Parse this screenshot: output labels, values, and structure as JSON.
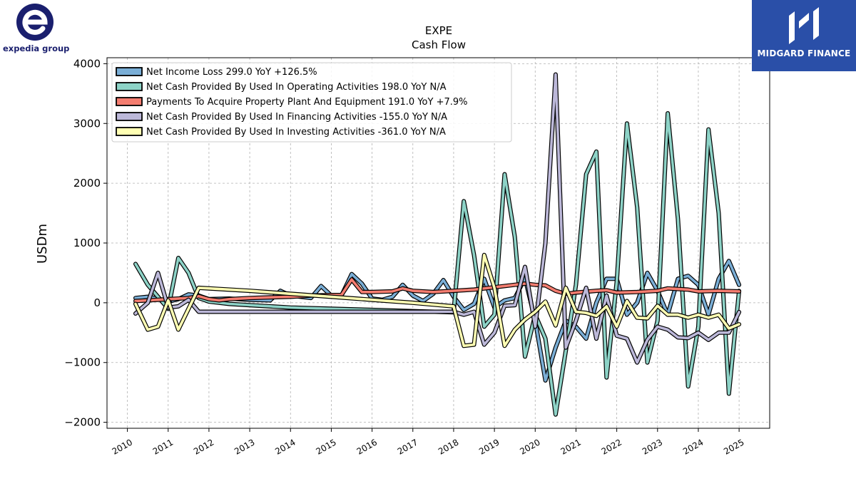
{
  "logos": {
    "left_text": "expedia group",
    "right_text": "MIDGARD FINANCE",
    "left_color": "#1a1f6e",
    "right_bg": "#2a4fa8"
  },
  "chart_data": {
    "type": "line",
    "title": "EXPE",
    "subtitle": "Cash Flow",
    "ylabel": "USDm",
    "xlabel": "",
    "ylim": [
      -2100,
      4100
    ],
    "xlim": [
      2009.5,
      2025.75
    ],
    "yticks": [
      -2000,
      -1000,
      0,
      1000,
      2000,
      3000,
      4000
    ],
    "ytick_labels": [
      "−2000",
      "−1000",
      "0",
      "1000",
      "2000",
      "3000",
      "4000"
    ],
    "xticks": [
      "2010",
      "2011",
      "2012",
      "2013",
      "2014",
      "2015",
      "2016",
      "2017",
      "2018",
      "2019",
      "2020",
      "2021",
      "2022",
      "2023",
      "2024",
      "2025"
    ],
    "grid": true,
    "legend_position": "top-left",
    "series": [
      {
        "name": "Net Income Loss  299.0 YoY +126.5%",
        "color": "#7aaed6",
        "points": [
          [
            2010.2,
            80
          ],
          [
            2010.5,
            100
          ],
          [
            2010.75,
            70
          ],
          [
            2011.0,
            20
          ],
          [
            2011.25,
            60
          ],
          [
            2011.5,
            140
          ],
          [
            2011.75,
            120
          ],
          [
            2012.0,
            60
          ],
          [
            2012.5,
            70
          ],
          [
            2013.0,
            50
          ],
          [
            2013.5,
            40
          ],
          [
            2013.75,
            200
          ],
          [
            2014.0,
            120
          ],
          [
            2014.5,
            80
          ],
          [
            2014.75,
            280
          ],
          [
            2015.0,
            120
          ],
          [
            2015.25,
            120
          ],
          [
            2015.5,
            480
          ],
          [
            2015.75,
            320
          ],
          [
            2016.0,
            70
          ],
          [
            2016.25,
            50
          ],
          [
            2016.5,
            100
          ],
          [
            2016.75,
            300
          ],
          [
            2017.0,
            120
          ],
          [
            2017.25,
            30
          ],
          [
            2017.5,
            150
          ],
          [
            2017.75,
            380
          ],
          [
            2018.0,
            100
          ],
          [
            2018.25,
            -120
          ],
          [
            2018.5,
            -20
          ],
          [
            2018.75,
            400
          ],
          [
            2019.0,
            -80
          ],
          [
            2019.25,
            40
          ],
          [
            2019.5,
            80
          ],
          [
            2019.75,
            410
          ],
          [
            2020.0,
            -300
          ],
          [
            2020.25,
            -1300
          ],
          [
            2020.5,
            -750
          ],
          [
            2020.75,
            -300
          ],
          [
            2021.0,
            -400
          ],
          [
            2021.25,
            -600
          ],
          [
            2021.5,
            0
          ],
          [
            2021.75,
            400
          ],
          [
            2022.0,
            400
          ],
          [
            2022.25,
            -200
          ],
          [
            2022.5,
            0
          ],
          [
            2022.75,
            500
          ],
          [
            2023.0,
            200
          ],
          [
            2023.25,
            -200
          ],
          [
            2023.5,
            400
          ],
          [
            2023.75,
            450
          ],
          [
            2024.0,
            300
          ],
          [
            2024.25,
            -200
          ],
          [
            2024.5,
            400
          ],
          [
            2024.75,
            700
          ],
          [
            2025.0,
            299
          ]
        ]
      },
      {
        "name": "Net Cash Provided By Used In Operating Activities  198.0 YoY N/A",
        "color": "#8dd3c7",
        "points": [
          [
            2010.2,
            650
          ],
          [
            2010.5,
            300
          ],
          [
            2010.75,
            100
          ],
          [
            2011.0,
            -100
          ],
          [
            2011.25,
            750
          ],
          [
            2011.5,
            500
          ],
          [
            2011.75,
            80
          ],
          [
            2012.0,
            20
          ],
          [
            2012.5,
            -20
          ],
          [
            2013.0,
            -40
          ],
          [
            2014.0,
            -80
          ],
          [
            2015.0,
            -100
          ],
          [
            2016.0,
            -120
          ],
          [
            2017.0,
            -140
          ],
          [
            2018.0,
            -160
          ],
          [
            2018.25,
            1700
          ],
          [
            2018.5,
            800
          ],
          [
            2018.75,
            -400
          ],
          [
            2019.0,
            -200
          ],
          [
            2019.25,
            2150
          ],
          [
            2019.5,
            1100
          ],
          [
            2019.75,
            -900
          ],
          [
            2020.0,
            -200
          ],
          [
            2020.25,
            -600
          ],
          [
            2020.5,
            -1870
          ],
          [
            2020.75,
            -800
          ],
          [
            2021.0,
            300
          ],
          [
            2021.25,
            2150
          ],
          [
            2021.5,
            2530
          ],
          [
            2021.75,
            -1250
          ],
          [
            2022.0,
            350
          ],
          [
            2022.25,
            3000
          ],
          [
            2022.5,
            1600
          ],
          [
            2022.75,
            -1000
          ],
          [
            2023.0,
            -300
          ],
          [
            2023.25,
            3170
          ],
          [
            2023.5,
            1400
          ],
          [
            2023.75,
            -1400
          ],
          [
            2024.0,
            -400
          ],
          [
            2024.25,
            2900
          ],
          [
            2024.5,
            1500
          ],
          [
            2024.75,
            -1520
          ],
          [
            2025.0,
            198
          ]
        ]
      },
      {
        "name": "Payments To Acquire Property Plant And Equipment  191.0 YoY +7.9%",
        "color": "#f47d70",
        "points": [
          [
            2010.2,
            30
          ],
          [
            2010.5,
            40
          ],
          [
            2010.75,
            50
          ],
          [
            2011.0,
            60
          ],
          [
            2011.5,
            80
          ],
          [
            2011.75,
            110
          ],
          [
            2012.0,
            60
          ],
          [
            2012.25,
            40
          ],
          [
            2012.5,
            60
          ],
          [
            2013.0,
            80
          ],
          [
            2013.5,
            90
          ],
          [
            2014.0,
            100
          ],
          [
            2014.5,
            120
          ],
          [
            2015.0,
            130
          ],
          [
            2015.25,
            130
          ],
          [
            2015.5,
            390
          ],
          [
            2015.75,
            180
          ],
          [
            2016.0,
            180
          ],
          [
            2016.5,
            190
          ],
          [
            2016.75,
            240
          ],
          [
            2017.0,
            200
          ],
          [
            2017.5,
            180
          ],
          [
            2018.0,
            200
          ],
          [
            2018.5,
            220
          ],
          [
            2019.0,
            260
          ],
          [
            2019.5,
            300
          ],
          [
            2019.75,
            320
          ],
          [
            2020.0,
            300
          ],
          [
            2020.25,
            290
          ],
          [
            2020.5,
            200
          ],
          [
            2020.75,
            150
          ],
          [
            2021.0,
            170
          ],
          [
            2021.5,
            200
          ],
          [
            2021.75,
            210
          ],
          [
            2022.0,
            170
          ],
          [
            2022.5,
            180
          ],
          [
            2023.0,
            200
          ],
          [
            2023.25,
            240
          ],
          [
            2023.75,
            220
          ],
          [
            2024.0,
            190
          ],
          [
            2024.5,
            200
          ],
          [
            2025.0,
            191
          ]
        ]
      },
      {
        "name": "Net Cash Provided By Used In Financing Activities  -155.0 YoY N/A",
        "color": "#bcb8d9",
        "points": [
          [
            2010.2,
            -180
          ],
          [
            2010.5,
            0
          ],
          [
            2010.75,
            500
          ],
          [
            2011.0,
            -80
          ],
          [
            2011.25,
            -60
          ],
          [
            2011.5,
            50
          ],
          [
            2011.75,
            -150
          ],
          [
            2012.0,
            -150
          ],
          [
            2013.0,
            -150
          ],
          [
            2014.0,
            -150
          ],
          [
            2015.0,
            -150
          ],
          [
            2016.0,
            -150
          ],
          [
            2017.0,
            -150
          ],
          [
            2018.0,
            -150
          ],
          [
            2018.25,
            -200
          ],
          [
            2018.5,
            -150
          ],
          [
            2018.75,
            -700
          ],
          [
            2019.0,
            -500
          ],
          [
            2019.25,
            -50
          ],
          [
            2019.5,
            -40
          ],
          [
            2019.75,
            600
          ],
          [
            2020.0,
            -400
          ],
          [
            2020.25,
            1000
          ],
          [
            2020.5,
            3820
          ],
          [
            2020.75,
            -750
          ],
          [
            2021.0,
            -300
          ],
          [
            2021.25,
            250
          ],
          [
            2021.5,
            -600
          ],
          [
            2021.75,
            120
          ],
          [
            2022.0,
            -550
          ],
          [
            2022.25,
            -600
          ],
          [
            2022.5,
            -1000
          ],
          [
            2022.75,
            -620
          ],
          [
            2023.0,
            -400
          ],
          [
            2023.25,
            -450
          ],
          [
            2023.5,
            -580
          ],
          [
            2023.75,
            -590
          ],
          [
            2024.0,
            -500
          ],
          [
            2024.25,
            -620
          ],
          [
            2024.5,
            -500
          ],
          [
            2024.75,
            -500
          ],
          [
            2025.0,
            -155
          ]
        ]
      },
      {
        "name": "Net Cash Provided By Used In Investing Activities  -361.0 YoY N/A",
        "color": "#ffffb3",
        "points": [
          [
            2010.2,
            -20
          ],
          [
            2010.5,
            -450
          ],
          [
            2010.75,
            -400
          ],
          [
            2011.0,
            40
          ],
          [
            2011.25,
            -450
          ],
          [
            2011.5,
            -100
          ],
          [
            2011.75,
            250
          ],
          [
            2012.0,
            240
          ],
          [
            2013.0,
            200
          ],
          [
            2014.0,
            150
          ],
          [
            2015.0,
            100
          ],
          [
            2016.0,
            50
          ],
          [
            2017.0,
            0
          ],
          [
            2018.0,
            -60
          ],
          [
            2018.25,
            -720
          ],
          [
            2018.5,
            -700
          ],
          [
            2018.75,
            800
          ],
          [
            2019.0,
            250
          ],
          [
            2019.25,
            -720
          ],
          [
            2019.5,
            -450
          ],
          [
            2019.75,
            -280
          ],
          [
            2020.0,
            -150
          ],
          [
            2020.25,
            20
          ],
          [
            2020.5,
            -380
          ],
          [
            2020.75,
            250
          ],
          [
            2021.0,
            -150
          ],
          [
            2021.25,
            -170
          ],
          [
            2021.5,
            -220
          ],
          [
            2021.75,
            -60
          ],
          [
            2022.0,
            -400
          ],
          [
            2022.25,
            30
          ],
          [
            2022.5,
            -250
          ],
          [
            2022.75,
            -260
          ],
          [
            2023.0,
            -50
          ],
          [
            2023.25,
            -200
          ],
          [
            2023.5,
            -200
          ],
          [
            2023.75,
            -250
          ],
          [
            2024.0,
            -200
          ],
          [
            2024.25,
            -250
          ],
          [
            2024.5,
            -200
          ],
          [
            2024.75,
            -430
          ],
          [
            2025.0,
            -361
          ]
        ]
      }
    ]
  }
}
